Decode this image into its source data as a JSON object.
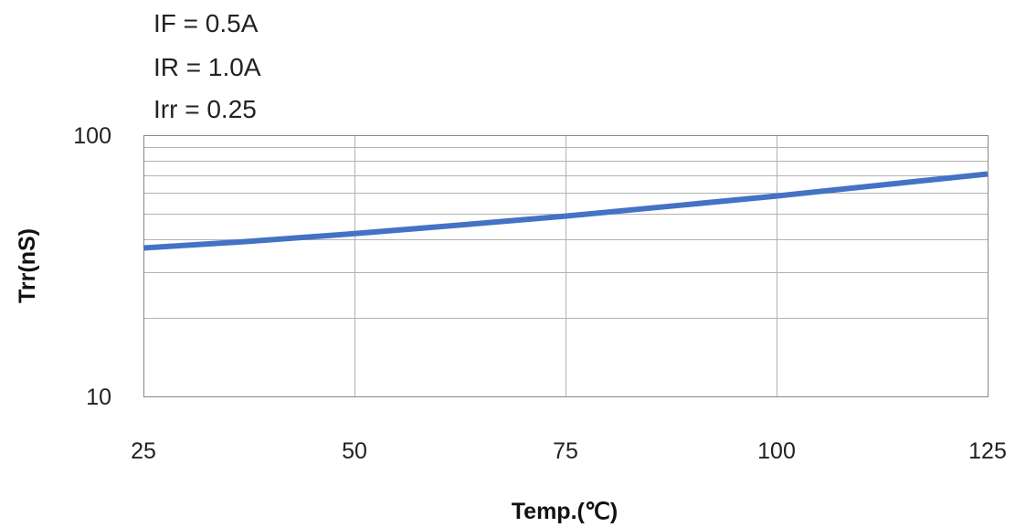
{
  "conditions": [
    "IF = 0.5A",
    "IR = 1.0A",
    "Irr = 0.25"
  ],
  "colors": {
    "series": "#4472c4",
    "grid": "#b3b3b3",
    "axis": "#888888"
  },
  "chart_data": {
    "type": "line",
    "xlabel": "Temp.(℃)",
    "ylabel": "Trr(nS)",
    "xlim": [
      25,
      125
    ],
    "ylim": [
      10,
      100
    ],
    "y_scale": "log",
    "grid": true,
    "x_ticks": [
      25,
      50,
      75,
      100,
      125
    ],
    "x_tick_labels": [
      "25",
      "50",
      "75",
      "100",
      "125"
    ],
    "y_tick_labels": [
      "10",
      "100"
    ],
    "series": [
      {
        "x": [
          25,
          37.5,
          50,
          62.5,
          75,
          87.5,
          100,
          112.5,
          125
        ],
        "y": [
          37,
          39.2,
          42,
          45.3,
          49,
          53.5,
          58.5,
          64.5,
          71
        ]
      }
    ]
  }
}
